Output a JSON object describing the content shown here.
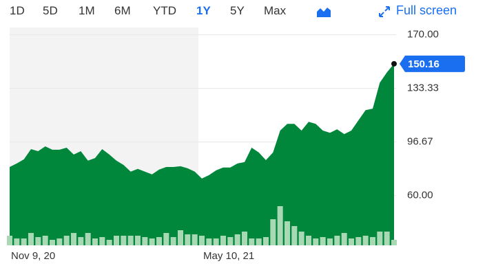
{
  "toolbar": {
    "ranges": [
      {
        "label": "1D"
      },
      {
        "label": "5D"
      },
      {
        "label": "1M"
      },
      {
        "label": "6M"
      },
      {
        "label": "YTD"
      },
      {
        "label": "1Y",
        "active": true
      },
      {
        "label": "5Y"
      },
      {
        "label": "Max"
      }
    ],
    "full_screen": "Full screen"
  },
  "chart_data": {
    "type": "area",
    "categories": [
      "Nov 9, 20",
      null,
      null,
      null,
      null,
      null,
      null,
      null,
      null,
      null,
      null,
      null,
      null,
      null,
      null,
      null,
      null,
      null,
      null,
      null,
      null,
      null,
      null,
      null,
      null,
      null,
      null,
      "May 10, 21",
      null,
      null,
      null,
      null,
      null,
      null,
      null,
      null,
      null,
      null,
      null,
      null,
      null,
      null,
      null,
      null,
      null,
      null,
      null,
      null,
      null,
      null,
      null,
      null,
      null,
      null,
      null
    ],
    "series": [
      {
        "color": "#00873c",
        "values": [
          79.6,
          82,
          84.8,
          91.8,
          90.4,
          93.7,
          91.4,
          91.4,
          92.8,
          88.1,
          90.4,
          83.9,
          85.7,
          91.8,
          88.1,
          83.9,
          81,
          76.4,
          78.3,
          76.4,
          74.5,
          77.8,
          79.6,
          79.6,
          80.1,
          78.7,
          76.4,
          71.7,
          74,
          77.3,
          79.2,
          79.2,
          82,
          82.9,
          92.8,
          89.5,
          84.3,
          89.5,
          104.5,
          109.1,
          109.1,
          104.5,
          110.5,
          109.1,
          104.5,
          103,
          105.4,
          102.1,
          104.5,
          111.5,
          118.5,
          119.5,
          137.2,
          144.3,
          150.16
        ]
      },
      {
        "color": "#a8d8b4",
        "axis": "y2",
        "values": [
          14,
          10,
          10,
          18,
          12,
          14,
          8,
          10,
          14,
          18,
          12,
          18,
          10,
          12,
          8,
          14,
          14,
          14,
          14,
          12,
          10,
          12,
          18,
          12,
          22,
          16,
          16,
          14,
          10,
          10,
          14,
          12,
          16,
          20,
          10,
          10,
          12,
          38,
          57,
          35,
          28,
          20,
          14,
          10,
          12,
          10,
          14,
          18,
          10,
          12,
          14,
          12,
          20,
          20,
          8
        ]
      }
    ],
    "ylim": [
      26,
      175
    ],
    "yticks": [
      {
        "value": 170,
        "label": "170.00"
      },
      133.33,
      96.67,
      {
        "value": 60,
        "label": "60.00"
      }
    ],
    "y2lim": [
      0,
      100
    ],
    "grid": true
  }
}
